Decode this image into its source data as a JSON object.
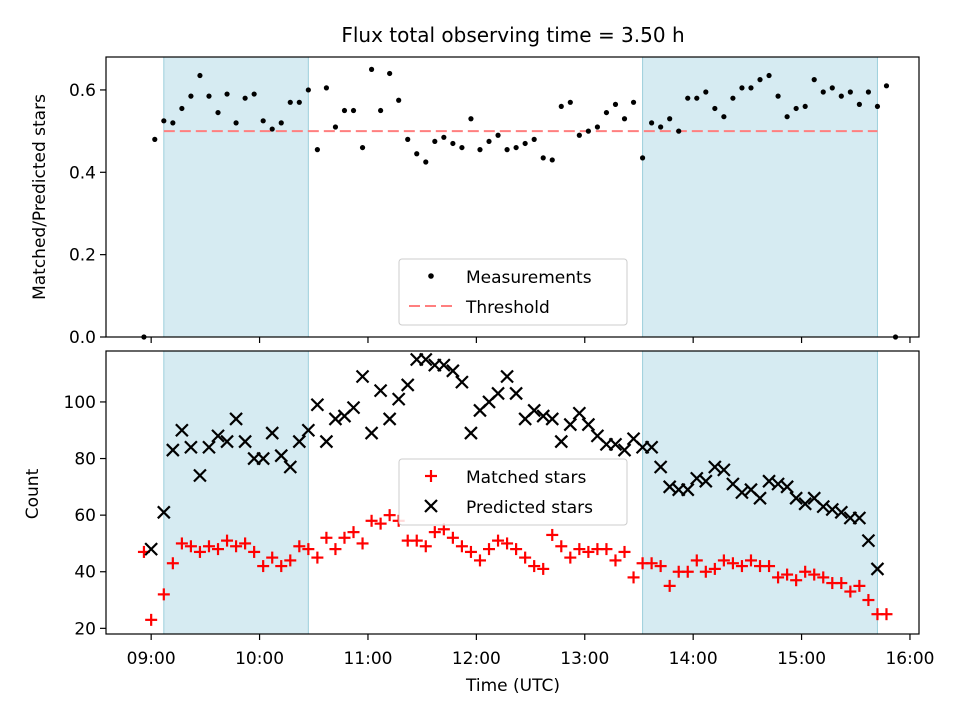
{
  "title": "Flux total observing time = 3.50 h",
  "chart_data": [
    {
      "type": "scatter",
      "panel": "top",
      "ylabel": "Matched/Predicted stars",
      "xlim": [
        "08:35",
        "16:05"
      ],
      "ylim": [
        0,
        0.68
      ],
      "yticks": [
        "0.0",
        "0.2",
        "0.4",
        "0.6"
      ],
      "shaded_intervals": [
        [
          "09:07",
          "10:27"
        ],
        [
          "13:32",
          "15:42"
        ]
      ],
      "shade_color": "#add8e6",
      "threshold": {
        "name": "Threshold",
        "value": 0.5,
        "x_range": [
          "09:07",
          "15:42"
        ],
        "color": "#ff7f7f",
        "style": "dashed"
      },
      "series": [
        {
          "name": "Measurements",
          "color": "#000000",
          "marker": "dot",
          "points": [
            [
              "08:56",
              0.0
            ],
            [
              "09:02",
              0.48
            ],
            [
              "09:07",
              0.525
            ],
            [
              "09:12",
              0.52
            ],
            [
              "09:17",
              0.555
            ],
            [
              "09:22",
              0.585
            ],
            [
              "09:27",
              0.635
            ],
            [
              "09:32",
              0.585
            ],
            [
              "09:37",
              0.545
            ],
            [
              "09:42",
              0.59
            ],
            [
              "09:47",
              0.52
            ],
            [
              "09:52",
              0.58
            ],
            [
              "09:57",
              0.59
            ],
            [
              "10:02",
              0.525
            ],
            [
              "10:07",
              0.505
            ],
            [
              "10:12",
              0.52
            ],
            [
              "10:17",
              0.57
            ],
            [
              "10:22",
              0.57
            ],
            [
              "10:27",
              0.6
            ],
            [
              "10:32",
              0.455
            ],
            [
              "10:37",
              0.605
            ],
            [
              "10:42",
              0.51
            ],
            [
              "10:47",
              0.55
            ],
            [
              "10:52",
              0.55
            ],
            [
              "10:57",
              0.46
            ],
            [
              "11:02",
              0.65
            ],
            [
              "11:07",
              0.55
            ],
            [
              "11:12",
              0.64
            ],
            [
              "11:17",
              0.575
            ],
            [
              "11:22",
              0.48
            ],
            [
              "11:27",
              0.445
            ],
            [
              "11:32",
              0.425
            ],
            [
              "11:37",
              0.475
            ],
            [
              "11:42",
              0.485
            ],
            [
              "11:47",
              0.47
            ],
            [
              "11:52",
              0.46
            ],
            [
              "11:57",
              0.53
            ],
            [
              "12:02",
              0.455
            ],
            [
              "12:07",
              0.475
            ],
            [
              "12:12",
              0.49
            ],
            [
              "12:17",
              0.455
            ],
            [
              "12:22",
              0.46
            ],
            [
              "12:27",
              0.47
            ],
            [
              "12:32",
              0.48
            ],
            [
              "12:37",
              0.435
            ],
            [
              "12:42",
              0.43
            ],
            [
              "12:47",
              0.56
            ],
            [
              "12:52",
              0.57
            ],
            [
              "12:57",
              0.49
            ],
            [
              "13:02",
              0.5
            ],
            [
              "13:07",
              0.51
            ],
            [
              "13:12",
              0.545
            ],
            [
              "13:17",
              0.565
            ],
            [
              "13:22",
              0.53
            ],
            [
              "13:27",
              0.57
            ],
            [
              "13:32",
              0.435
            ],
            [
              "13:37",
              0.52
            ],
            [
              "13:42",
              0.51
            ],
            [
              "13:47",
              0.53
            ],
            [
              "13:52",
              0.5
            ],
            [
              "13:57",
              0.58
            ],
            [
              "14:02",
              0.58
            ],
            [
              "14:07",
              0.595
            ],
            [
              "14:12",
              0.555
            ],
            [
              "14:17",
              0.535
            ],
            [
              "14:22",
              0.58
            ],
            [
              "14:27",
              0.605
            ],
            [
              "14:32",
              0.605
            ],
            [
              "14:37",
              0.625
            ],
            [
              "14:42",
              0.635
            ],
            [
              "14:47",
              0.585
            ],
            [
              "14:52",
              0.535
            ],
            [
              "14:57",
              0.555
            ],
            [
              "15:02",
              0.56
            ],
            [
              "15:07",
              0.625
            ],
            [
              "15:12",
              0.595
            ],
            [
              "15:17",
              0.605
            ],
            [
              "15:22",
              0.585
            ],
            [
              "15:27",
              0.595
            ],
            [
              "15:32",
              0.565
            ],
            [
              "15:37",
              0.595
            ],
            [
              "15:42",
              0.56
            ],
            [
              "15:47",
              0.61
            ],
            [
              "15:52",
              0.0
            ]
          ]
        }
      ],
      "legend": {
        "location": "lower center",
        "entries": [
          "Measurements",
          "Threshold"
        ]
      }
    },
    {
      "type": "scatter",
      "panel": "bottom",
      "xlabel": "Time (UTC)",
      "ylabel": "Count",
      "xlim": [
        "08:35",
        "16:05"
      ],
      "ylim": [
        18,
        118
      ],
      "yticks": [
        "20",
        "40",
        "60",
        "80",
        "100"
      ],
      "xticks": [
        "09:00",
        "10:00",
        "11:00",
        "12:00",
        "13:00",
        "14:00",
        "15:00",
        "16:00"
      ],
      "shaded_intervals": [
        [
          "09:07",
          "10:27"
        ],
        [
          "13:32",
          "15:42"
        ]
      ],
      "shade_color": "#add8e6",
      "series": [
        {
          "name": "Matched stars",
          "color": "#ff0000",
          "marker": "plus",
          "points": [
            [
              "08:56",
              47
            ],
            [
              "09:00",
              23
            ],
            [
              "09:07",
              32
            ],
            [
              "09:12",
              43
            ],
            [
              "09:17",
              50
            ],
            [
              "09:22",
              49
            ],
            [
              "09:27",
              47
            ],
            [
              "09:32",
              49
            ],
            [
              "09:37",
              48
            ],
            [
              "09:42",
              51
            ],
            [
              "09:47",
              49
            ],
            [
              "09:52",
              50
            ],
            [
              "09:57",
              47
            ],
            [
              "10:02",
              42
            ],
            [
              "10:07",
              45
            ],
            [
              "10:12",
              42
            ],
            [
              "10:17",
              44
            ],
            [
              "10:22",
              49
            ],
            [
              "10:27",
              48
            ],
            [
              "10:32",
              45
            ],
            [
              "10:37",
              52
            ],
            [
              "10:42",
              48
            ],
            [
              "10:47",
              52
            ],
            [
              "10:52",
              54
            ],
            [
              "10:57",
              50
            ],
            [
              "11:02",
              58
            ],
            [
              "11:07",
              57
            ],
            [
              "11:12",
              60
            ],
            [
              "11:17",
              58
            ],
            [
              "11:22",
              51
            ],
            [
              "11:27",
              51
            ],
            [
              "11:32",
              49
            ],
            [
              "11:37",
              54
            ],
            [
              "11:42",
              55
            ],
            [
              "11:47",
              52
            ],
            [
              "11:52",
              49
            ],
            [
              "11:57",
              47
            ],
            [
              "12:02",
              44
            ],
            [
              "12:07",
              48
            ],
            [
              "12:12",
              51
            ],
            [
              "12:17",
              50
            ],
            [
              "12:22",
              48
            ],
            [
              "12:27",
              45
            ],
            [
              "12:32",
              42
            ],
            [
              "12:37",
              41
            ],
            [
              "12:42",
              53
            ],
            [
              "12:47",
              49
            ],
            [
              "12:52",
              45
            ],
            [
              "12:57",
              48
            ],
            [
              "13:02",
              47
            ],
            [
              "13:07",
              48
            ],
            [
              "13:12",
              48
            ],
            [
              "13:17",
              44
            ],
            [
              "13:22",
              47
            ],
            [
              "13:27",
              38
            ],
            [
              "13:32",
              43
            ],
            [
              "13:37",
              43
            ],
            [
              "13:42",
              42
            ],
            [
              "13:47",
              35
            ],
            [
              "13:52",
              40
            ],
            [
              "13:57",
              40
            ],
            [
              "14:02",
              44
            ],
            [
              "14:07",
              40
            ],
            [
              "14:12",
              41
            ],
            [
              "14:17",
              44
            ],
            [
              "14:22",
              43
            ],
            [
              "14:27",
              42
            ],
            [
              "14:32",
              44
            ],
            [
              "14:37",
              42
            ],
            [
              "14:42",
              42
            ],
            [
              "14:47",
              38
            ],
            [
              "14:52",
              39
            ],
            [
              "14:57",
              37
            ],
            [
              "15:02",
              40
            ],
            [
              "15:07",
              39
            ],
            [
              "15:12",
              38
            ],
            [
              "15:17",
              36
            ],
            [
              "15:22",
              36
            ],
            [
              "15:27",
              33
            ],
            [
              "15:32",
              35
            ],
            [
              "15:37",
              30
            ],
            [
              "15:42",
              25
            ],
            [
              "15:47",
              25
            ]
          ]
        },
        {
          "name": "Predicted stars",
          "color": "#000000",
          "marker": "x",
          "points": [
            [
              "09:00",
              48
            ],
            [
              "09:07",
              61
            ],
            [
              "09:12",
              83
            ],
            [
              "09:17",
              90
            ],
            [
              "09:22",
              84
            ],
            [
              "09:27",
              74
            ],
            [
              "09:32",
              84
            ],
            [
              "09:37",
              88
            ],
            [
              "09:42",
              86
            ],
            [
              "09:47",
              94
            ],
            [
              "09:52",
              86
            ],
            [
              "09:57",
              80
            ],
            [
              "10:02",
              80
            ],
            [
              "10:07",
              89
            ],
            [
              "10:12",
              81
            ],
            [
              "10:17",
              77
            ],
            [
              "10:22",
              86
            ],
            [
              "10:27",
              90
            ],
            [
              "10:32",
              99
            ],
            [
              "10:37",
              86
            ],
            [
              "10:42",
              94
            ],
            [
              "10:47",
              95
            ],
            [
              "10:52",
              98
            ],
            [
              "10:57",
              109
            ],
            [
              "11:02",
              89
            ],
            [
              "11:07",
              104
            ],
            [
              "11:12",
              94
            ],
            [
              "11:17",
              101
            ],
            [
              "11:22",
              106
            ],
            [
              "11:27",
              115
            ],
            [
              "11:32",
              115
            ],
            [
              "11:37",
              113
            ],
            [
              "11:42",
              113
            ],
            [
              "11:47",
              111
            ],
            [
              "11:52",
              107
            ],
            [
              "11:57",
              89
            ],
            [
              "12:02",
              97
            ],
            [
              "12:07",
              100
            ],
            [
              "12:12",
              103
            ],
            [
              "12:17",
              109
            ],
            [
              "12:22",
              103
            ],
            [
              "12:27",
              94
            ],
            [
              "12:32",
              97
            ],
            [
              "12:37",
              95
            ],
            [
              "12:42",
              94
            ],
            [
              "12:47",
              86
            ],
            [
              "12:52",
              92
            ],
            [
              "12:57",
              96
            ],
            [
              "13:02",
              92
            ],
            [
              "13:07",
              88
            ],
            [
              "13:12",
              85
            ],
            [
              "13:17",
              85
            ],
            [
              "13:22",
              83
            ],
            [
              "13:27",
              87
            ],
            [
              "13:32",
              84
            ],
            [
              "13:37",
              84
            ],
            [
              "13:42",
              77
            ],
            [
              "13:47",
              70
            ],
            [
              "13:52",
              69
            ],
            [
              "13:57",
              69
            ],
            [
              "14:02",
              73
            ],
            [
              "14:07",
              72
            ],
            [
              "14:12",
              77
            ],
            [
              "14:17",
              76
            ],
            [
              "14:22",
              71
            ],
            [
              "14:27",
              68
            ],
            [
              "14:32",
              69
            ],
            [
              "14:37",
              66
            ],
            [
              "14:42",
              72
            ],
            [
              "14:47",
              71
            ],
            [
              "14:52",
              70
            ],
            [
              "14:57",
              66
            ],
            [
              "15:02",
              64
            ],
            [
              "15:07",
              66
            ],
            [
              "15:12",
              63
            ],
            [
              "15:17",
              62
            ],
            [
              "15:22",
              61
            ],
            [
              "15:27",
              59
            ],
            [
              "15:32",
              59
            ],
            [
              "15:37",
              51
            ],
            [
              "15:42",
              41
            ]
          ]
        }
      ],
      "legend": {
        "location": "center",
        "entries": [
          "Matched stars",
          "Predicted stars"
        ]
      }
    }
  ]
}
